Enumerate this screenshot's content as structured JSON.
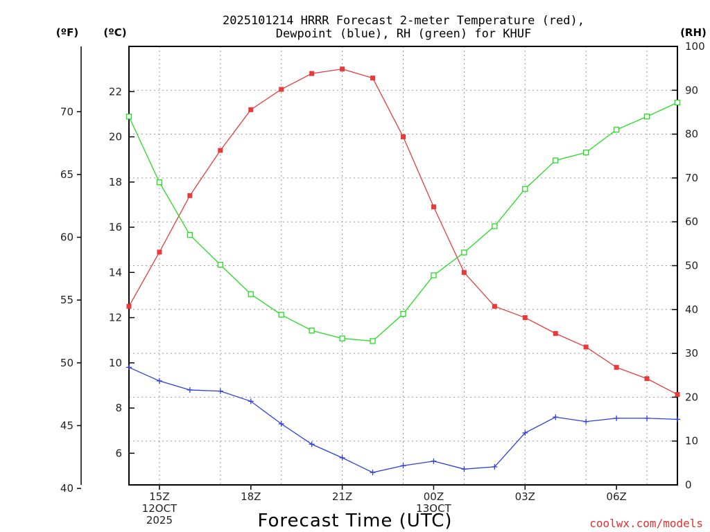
{
  "title": {
    "line1": "2025101214 HRRR Forecast 2-meter Temperature (red),",
    "line2": "Dewpoint (blue), RH (green) for KHUF"
  },
  "units": {
    "fahrenheit": "(ºF)",
    "celsius": "(ºC)",
    "rh": "(RH)"
  },
  "credit": "coolwx.com/models",
  "chart_data": {
    "type": "line",
    "title": "2025101214 HRRR Forecast 2-meter Temperature (red), Dewpoint (blue), RH (green) for KHUF",
    "xlabel": "Forecast Time (UTC)",
    "x_hours": [
      14,
      15,
      16,
      17,
      18,
      19,
      20,
      21,
      22,
      23,
      24,
      25,
      26,
      27,
      28,
      29,
      30,
      31,
      32
    ],
    "xlim": [
      14,
      32
    ],
    "x_ticks": [
      {
        "hour": 15,
        "lines": [
          "15Z",
          "12OCT",
          "2025"
        ]
      },
      {
        "hour": 18,
        "lines": [
          "18Z"
        ]
      },
      {
        "hour": 21,
        "lines": [
          "21Z"
        ]
      },
      {
        "hour": 24,
        "lines": [
          "00Z",
          "13OCT"
        ]
      },
      {
        "hour": 27,
        "lines": [
          "03Z"
        ]
      },
      {
        "hour": 30,
        "lines": [
          "06Z"
        ]
      }
    ],
    "y_left_c": {
      "label": "(ºC)",
      "ylim": [
        4.6,
        24.0
      ],
      "ticks": [
        6,
        8,
        10,
        12,
        14,
        16,
        18,
        20,
        22
      ]
    },
    "y_left_f": {
      "label": "(ºF)",
      "ticks": [
        40,
        45,
        50,
        55,
        60,
        65,
        70
      ]
    },
    "y_right_rh": {
      "label": "(RH)",
      "ylim": [
        0,
        100
      ],
      "ticks": [
        0,
        10,
        20,
        30,
        40,
        50,
        60,
        70,
        80,
        90,
        100
      ]
    },
    "series": [
      {
        "name": "Temperature (°C)",
        "color": "#e83a3a",
        "axis": "c",
        "marker": "filled-square",
        "values": [
          12.5,
          14.9,
          17.4,
          19.4,
          21.2,
          22.1,
          22.8,
          23.0,
          22.6,
          20.0,
          16.9,
          14.0,
          12.5,
          12.0,
          11.3,
          10.7,
          9.8,
          9.3,
          8.6
        ]
      },
      {
        "name": "Dewpoint (°C)",
        "color": "#2a3ee8",
        "axis": "c",
        "marker": "plus",
        "values": [
          9.8,
          9.2,
          8.8,
          8.75,
          8.3,
          7.3,
          6.4,
          5.8,
          5.15,
          5.45,
          5.65,
          5.3,
          5.4,
          6.9,
          7.6,
          7.4,
          7.55,
          7.55,
          7.5
        ]
      },
      {
        "name": "RH (%)",
        "color": "#22dd22",
        "axis": "rh",
        "marker": "open-square",
        "values": [
          84,
          69,
          57,
          50.2,
          43.5,
          38.8,
          35.2,
          33.4,
          32.8,
          39,
          47.8,
          53,
          59,
          67.5,
          74,
          75.8,
          81,
          84,
          87.2
        ]
      }
    ]
  }
}
